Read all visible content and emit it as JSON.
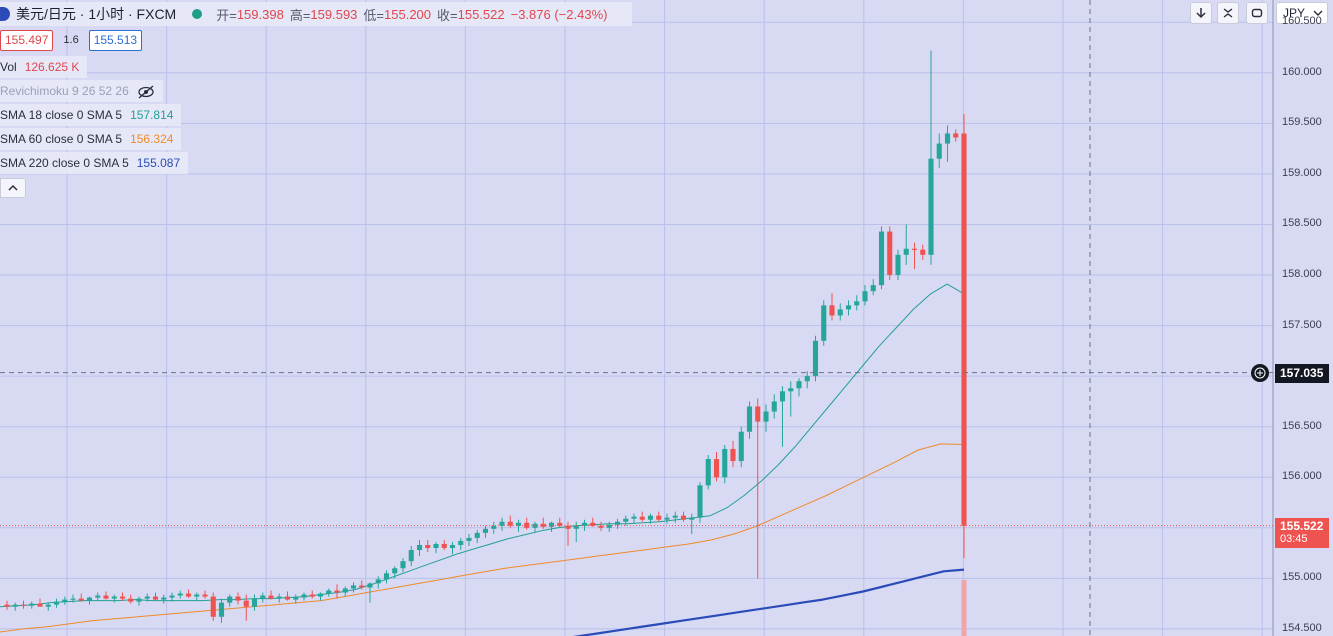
{
  "header": {
    "symbol_title": "美元/日元 · 1小时 · FXCM",
    "open_label": "开=",
    "open_value": "159.398",
    "high_label": "高=",
    "high_value": "159.593",
    "low_label": "低=",
    "low_value": "155.200",
    "close_label": "收=",
    "close_value": "155.522",
    "change_text": "−3.876 (−2.43%)"
  },
  "price_row": {
    "bid": "155.497",
    "spread": "1.6",
    "ask": "155.513"
  },
  "indicators": [
    {
      "label": "Vol",
      "value": "126.625 K",
      "color": "#e0474c"
    },
    {
      "label": "Revichimoku 9 26 52 26",
      "value": "",
      "color": "#9aa0b8"
    },
    {
      "label": "SMA 18 close 0 SMA 5",
      "value": "157.814",
      "color": "#22a093"
    },
    {
      "label": "SMA 60 close 0 SMA 5",
      "value": "156.324",
      "color": "#f08a2b"
    },
    {
      "label": "SMA 220 close 0 SMA 5",
      "value": "155.087",
      "color": "#2a4bb8"
    }
  ],
  "currency_selector": "JPY",
  "crosshair_price": "157.035",
  "last_price_tag": {
    "price": "155.522",
    "countdown": "03:45"
  },
  "colors": {
    "up": "#26a69a",
    "down": "#ef5350",
    "background": "#d8daf4",
    "grid": "#b9c0ea"
  },
  "chart_data": {
    "type": "candlestick",
    "symbol": "USD/JPY",
    "timeframe": "1H",
    "ylim": [
      154.43,
      160.72
    ],
    "y_ticks": [
      "154.500",
      "155.000",
      "155.500",
      "156.000",
      "156.500",
      "157.000",
      "157.500",
      "158.000",
      "158.500",
      "159.000",
      "159.500",
      "160.000",
      "160.500"
    ],
    "candles": [
      [
        154.74,
        154.78,
        154.69,
        154.72
      ],
      [
        154.72,
        154.76,
        154.68,
        154.74
      ],
      [
        154.74,
        154.78,
        154.7,
        154.73
      ],
      [
        154.73,
        154.77,
        154.7,
        154.75
      ],
      [
        154.75,
        154.8,
        154.72,
        154.72
      ],
      [
        154.72,
        154.76,
        154.68,
        154.74
      ],
      [
        154.74,
        154.8,
        154.71,
        154.77
      ],
      [
        154.77,
        154.82,
        154.74,
        154.79
      ],
      [
        154.79,
        154.84,
        154.76,
        154.8
      ],
      [
        154.8,
        154.85,
        154.77,
        154.78
      ],
      [
        154.78,
        154.82,
        154.74,
        154.81
      ],
      [
        154.81,
        154.86,
        154.78,
        154.83
      ],
      [
        154.83,
        154.87,
        154.79,
        154.8
      ],
      [
        154.8,
        154.84,
        154.76,
        154.82
      ],
      [
        154.82,
        154.86,
        154.78,
        154.8
      ],
      [
        154.8,
        154.84,
        154.75,
        154.77
      ],
      [
        154.77,
        154.82,
        154.73,
        154.8
      ],
      [
        154.8,
        154.85,
        154.77,
        154.82
      ],
      [
        154.82,
        154.86,
        154.78,
        154.79
      ],
      [
        154.79,
        154.84,
        154.75,
        154.81
      ],
      [
        154.81,
        154.86,
        154.77,
        154.83
      ],
      [
        154.83,
        154.88,
        154.8,
        154.85
      ],
      [
        154.85,
        154.89,
        154.81,
        154.82
      ],
      [
        154.82,
        154.86,
        154.78,
        154.84
      ],
      [
        154.84,
        154.88,
        154.8,
        154.82
      ],
      [
        154.82,
        154.86,
        154.58,
        154.62
      ],
      [
        154.62,
        154.8,
        154.56,
        154.76
      ],
      [
        154.76,
        154.84,
        154.72,
        154.82
      ],
      [
        154.82,
        154.86,
        154.74,
        154.78
      ],
      [
        154.78,
        154.84,
        154.58,
        154.72
      ],
      [
        154.72,
        154.84,
        154.68,
        154.8
      ],
      [
        154.8,
        154.86,
        154.76,
        154.83
      ],
      [
        154.83,
        154.88,
        154.79,
        154.8
      ],
      [
        154.8,
        154.85,
        154.76,
        154.82
      ],
      [
        154.82,
        154.87,
        154.78,
        154.79
      ],
      [
        154.79,
        154.84,
        154.75,
        154.81
      ],
      [
        154.81,
        154.86,
        154.78,
        154.84
      ],
      [
        154.84,
        154.88,
        154.8,
        154.82
      ],
      [
        154.82,
        154.86,
        154.78,
        154.85
      ],
      [
        154.85,
        154.9,
        154.82,
        154.88
      ],
      [
        154.88,
        154.94,
        154.8,
        154.86
      ],
      [
        154.86,
        154.92,
        154.82,
        154.9
      ],
      [
        154.9,
        154.96,
        154.86,
        154.93
      ],
      [
        154.93,
        154.98,
        154.89,
        154.91
      ],
      [
        154.91,
        154.96,
        154.76,
        154.95
      ],
      [
        154.95,
        155.02,
        154.9,
        154.99
      ],
      [
        154.99,
        155.08,
        154.95,
        155.05
      ],
      [
        155.05,
        155.12,
        155.0,
        155.1
      ],
      [
        155.1,
        155.2,
        155.06,
        155.17
      ],
      [
        155.17,
        155.32,
        155.12,
        155.28
      ],
      [
        155.28,
        155.38,
        155.22,
        155.33
      ],
      [
        155.33,
        155.38,
        155.26,
        155.3
      ],
      [
        155.3,
        155.36,
        155.25,
        155.34
      ],
      [
        155.34,
        155.38,
        155.28,
        155.3
      ],
      [
        155.3,
        155.36,
        155.24,
        155.33
      ],
      [
        155.33,
        155.4,
        155.28,
        155.37
      ],
      [
        155.37,
        155.44,
        155.32,
        155.4
      ],
      [
        155.4,
        155.48,
        155.35,
        155.45
      ],
      [
        155.45,
        155.52,
        155.4,
        155.49
      ],
      [
        155.49,
        155.56,
        155.44,
        155.52
      ],
      [
        155.52,
        155.6,
        155.47,
        155.56
      ],
      [
        155.56,
        155.62,
        155.5,
        155.52
      ],
      [
        155.52,
        155.58,
        155.46,
        155.55
      ],
      [
        155.55,
        155.6,
        155.48,
        155.5
      ],
      [
        155.5,
        155.56,
        155.45,
        155.54
      ],
      [
        155.54,
        155.6,
        155.49,
        155.51
      ],
      [
        155.51,
        155.56,
        155.46,
        155.55
      ],
      [
        155.55,
        155.6,
        155.5,
        155.52
      ],
      [
        155.52,
        155.56,
        155.32,
        155.49
      ],
      [
        155.49,
        155.56,
        155.36,
        155.52
      ],
      [
        155.52,
        155.58,
        155.47,
        155.55
      ],
      [
        155.55,
        155.6,
        155.51,
        155.52
      ],
      [
        155.52,
        155.56,
        155.47,
        155.5
      ],
      [
        155.5,
        155.56,
        155.46,
        155.53
      ],
      [
        155.53,
        155.59,
        155.49,
        155.56
      ],
      [
        155.56,
        155.62,
        155.52,
        155.59
      ],
      [
        155.59,
        155.64,
        155.54,
        155.61
      ],
      [
        155.61,
        155.66,
        155.56,
        155.58
      ],
      [
        155.58,
        155.64,
        155.54,
        155.62
      ],
      [
        155.62,
        155.66,
        155.56,
        155.58
      ],
      [
        155.58,
        155.64,
        155.54,
        155.6
      ],
      [
        155.6,
        155.66,
        155.55,
        155.62
      ],
      [
        155.62,
        155.66,
        155.56,
        155.58
      ],
      [
        155.58,
        155.64,
        155.44,
        155.6
      ],
      [
        155.6,
        155.95,
        155.55,
        155.92
      ],
      [
        155.92,
        156.22,
        155.88,
        156.18
      ],
      [
        156.18,
        156.25,
        155.96,
        156.0
      ],
      [
        156.0,
        156.32,
        155.94,
        156.28
      ],
      [
        156.28,
        156.36,
        156.1,
        156.16
      ],
      [
        156.16,
        156.5,
        156.1,
        156.45
      ],
      [
        156.45,
        156.75,
        156.38,
        156.7
      ],
      [
        156.7,
        156.78,
        155.0,
        156.55
      ],
      [
        156.55,
        156.72,
        156.45,
        156.65
      ],
      [
        156.65,
        156.82,
        156.58,
        156.75
      ],
      [
        156.75,
        156.9,
        156.3,
        156.85
      ],
      [
        156.85,
        156.95,
        156.6,
        156.88
      ],
      [
        156.88,
        156.98,
        156.8,
        156.95
      ],
      [
        156.95,
        157.05,
        156.88,
        157.0
      ],
      [
        157.0,
        157.4,
        156.95,
        157.35
      ],
      [
        157.35,
        157.75,
        157.3,
        157.7
      ],
      [
        157.7,
        157.82,
        157.55,
        157.6
      ],
      [
        157.6,
        157.72,
        157.55,
        157.66
      ],
      [
        157.66,
        157.75,
        157.6,
        157.7
      ],
      [
        157.7,
        157.8,
        157.65,
        157.74
      ],
      [
        157.74,
        157.9,
        157.7,
        157.84
      ],
      [
        157.84,
        157.96,
        157.8,
        157.9
      ],
      [
        157.9,
        158.48,
        157.86,
        158.43
      ],
      [
        158.43,
        158.48,
        157.95,
        158.0
      ],
      [
        158.0,
        158.25,
        157.95,
        158.2
      ],
      [
        158.2,
        158.5,
        158.1,
        158.26
      ],
      [
        158.26,
        158.32,
        158.06,
        158.25
      ],
      [
        158.25,
        158.3,
        158.15,
        158.2
      ],
      [
        158.2,
        160.22,
        158.1,
        159.15
      ],
      [
        159.15,
        159.4,
        159.06,
        159.3
      ],
      [
        159.3,
        159.48,
        159.12,
        159.4
      ],
      [
        159.4,
        159.44,
        159.32,
        159.36
      ],
      [
        159.4,
        159.59,
        155.2,
        155.52
      ]
    ],
    "sma18": [
      154.72,
      154.73,
      154.74,
      154.76,
      154.77,
      154.78,
      154.78,
      154.78,
      154.79,
      154.78,
      154.78,
      154.78,
      154.78,
      154.79,
      154.79,
      154.8,
      154.8,
      154.81,
      154.82,
      154.84,
      154.86,
      154.89,
      154.94,
      155.0,
      155.06,
      155.12,
      155.18,
      155.24,
      155.29,
      155.34,
      155.39,
      155.43,
      155.47,
      155.5,
      155.52,
      155.53,
      155.54,
      155.54,
      155.55,
      155.56,
      155.58,
      155.6,
      155.62,
      155.7,
      155.82,
      155.96,
      156.12,
      156.3,
      156.5,
      156.7,
      156.9,
      157.1,
      157.3,
      157.48,
      157.66,
      157.81,
      157.91,
      157.814
    ],
    "sma60": [
      154.47,
      154.5,
      154.52,
      154.55,
      154.58,
      154.6,
      154.62,
      154.64,
      154.66,
      154.68,
      154.7,
      154.72,
      154.74,
      154.76,
      154.78,
      154.82,
      154.86,
      154.9,
      154.94,
      154.98,
      155.02,
      155.06,
      155.1,
      155.13,
      155.16,
      155.19,
      155.22,
      155.25,
      155.28,
      155.31,
      155.34,
      155.38,
      155.44,
      155.52,
      155.62,
      155.72,
      155.82,
      155.93,
      156.04,
      156.15,
      156.27,
      156.33,
      156.324
    ],
    "sma220": [
      154.4,
      154.43,
      154.46,
      154.49,
      154.52,
      154.55,
      154.58,
      154.61,
      154.64,
      154.67,
      154.7,
      154.73,
      154.76,
      154.79,
      154.83,
      154.87,
      154.92,
      154.97,
      155.02,
      155.07,
      155.087
    ]
  }
}
